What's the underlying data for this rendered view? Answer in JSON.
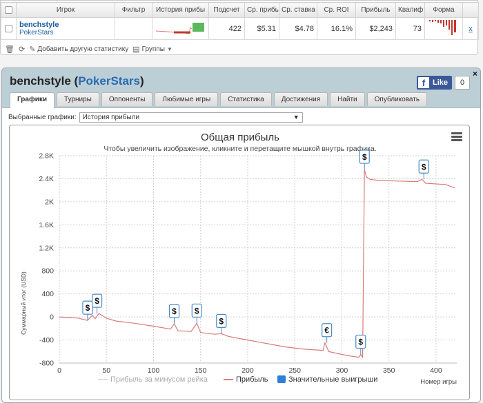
{
  "table": {
    "headers": [
      "Игрок",
      "Фильтр",
      "История прибы",
      "Подсчет",
      "Ср. прибы",
      "Ср. ставка",
      "Ср. ROI",
      "Прибыль",
      "Квалиф",
      "Форма"
    ],
    "row": {
      "player_name": "benchstyle",
      "site": "PokerStars",
      "count": "422",
      "avg_profit": "$5.31",
      "avg_stake": "$4.78",
      "avg_roi": "16.1%",
      "profit": "$2,243",
      "qualif": "73",
      "remove": "x"
    }
  },
  "toolbar": {
    "add_stats": "Добавить другую статистику",
    "groups": "Группы"
  },
  "profile": {
    "name": "benchstyle",
    "site": "PokerStars",
    "open_paren": " (",
    "close_paren": ")",
    "fb_like": "Like",
    "fb_count": "0",
    "close": "×"
  },
  "tabs": [
    "Графики",
    "Турниры",
    "Оппоненты",
    "Любимые игры",
    "Статистика",
    "Достижения",
    "Найти",
    "Опубликовать"
  ],
  "selector": {
    "label": "Выбранные графики:",
    "value": "История прибыли"
  },
  "colors": {
    "profit_line": "#d97b7b",
    "rake_line": "#dddddd",
    "big_wins": "#2f7ed8",
    "accent_blue": "#2a6bb0",
    "facebook": "#3b5998"
  },
  "chart_data": {
    "type": "line",
    "title": "Общая прибыль",
    "subtitle": "Чтобы увеличить изображение, кликните и перетащите мышкой внутрь графика.",
    "ylabel": "Суммарный итог (USD)",
    "xlabel": "Номер игры",
    "xlim": [
      0,
      422
    ],
    "ylim": [
      -800,
      2800
    ],
    "x_ticks": [
      "0",
      "50",
      "100",
      "150",
      "200",
      "250",
      "300",
      "350",
      "400"
    ],
    "y_ticks": [
      "-800",
      "-400",
      "0",
      "400",
      "800",
      "1.2K",
      "1.6K",
      "2K",
      "2.4K",
      "2.8K"
    ],
    "series": [
      {
        "name": "Прибыль",
        "x": [
          0,
          10,
          20,
          30,
          35,
          38,
          42,
          50,
          60,
          80,
          100,
          118,
          122,
          126,
          140,
          146,
          150,
          165,
          172,
          180,
          200,
          220,
          240,
          260,
          280,
          282,
          286,
          300,
          310,
          318,
          320,
          322,
          324,
          326,
          330,
          340,
          360,
          380,
          385,
          389,
          400,
          410,
          420
        ],
        "y": [
          0,
          -10,
          -20,
          -60,
          30,
          -30,
          60,
          -20,
          -70,
          -110,
          -160,
          -210,
          -120,
          -240,
          -250,
          -110,
          -270,
          -300,
          -290,
          -340,
          -400,
          -460,
          -520,
          -560,
          -580,
          -450,
          -600,
          -650,
          -680,
          -700,
          -650,
          -700,
          2560,
          2430,
          2390,
          2370,
          2360,
          2350,
          2390,
          2320,
          2310,
          2300,
          2240
        ]
      },
      {
        "name": "Прибыль за минусом рейка",
        "x": [],
        "y": []
      }
    ],
    "big_wins": [
      {
        "x": 30,
        "y": -60,
        "symbol": "$"
      },
      {
        "x": 40,
        "y": 60,
        "symbol": "$"
      },
      {
        "x": 122,
        "y": -120,
        "symbol": "$"
      },
      {
        "x": 146,
        "y": -110,
        "symbol": "$"
      },
      {
        "x": 172,
        "y": -290,
        "symbol": "$"
      },
      {
        "x": 284,
        "y": -450,
        "symbol": "€"
      },
      {
        "x": 320,
        "y": -650,
        "symbol": "$"
      },
      {
        "x": 324,
        "y": 2560,
        "symbol": "$"
      },
      {
        "x": 387,
        "y": 2390,
        "symbol": "$"
      }
    ],
    "legend": [
      "Прибыль за минусом рейка",
      "Прибыль",
      "Значительные выигрыши"
    ],
    "legend_position": "bottom",
    "grid": true
  }
}
